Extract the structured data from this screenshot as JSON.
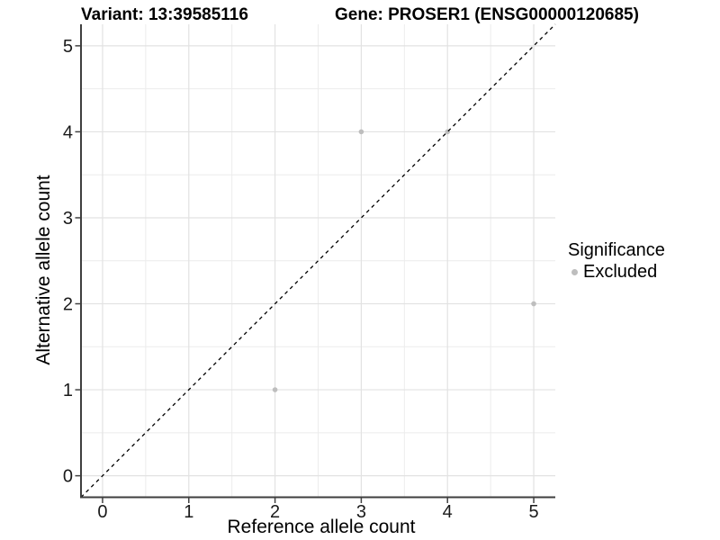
{
  "figure": {
    "variant_title": "Variant: 13:39585116",
    "gene_title": "Gene: PROSER1 (ENSG00000120685)"
  },
  "axes": {
    "x_title": "Reference allele count",
    "y_title": "Alternative allele count"
  },
  "legend": {
    "title": "Significance",
    "items": [
      {
        "label": "Excluded",
        "color": "#bebebe"
      }
    ]
  },
  "chart_data": {
    "type": "scatter",
    "title": "Variant: 13:39585116",
    "subtitle": "Gene: PROSER1 (ENSG00000120685)",
    "xlabel": "Reference allele count",
    "ylabel": "Alternative allele count",
    "xlim": [
      -0.25,
      5.25
    ],
    "ylim": [
      -0.25,
      5.25
    ],
    "x_ticks": [
      0,
      1,
      2,
      3,
      4,
      5
    ],
    "y_ticks": [
      0,
      1,
      2,
      3,
      4,
      5
    ],
    "x_minor_ticks": [
      0.5,
      1.5,
      2.5,
      3.5,
      4.5
    ],
    "y_minor_ticks": [
      0.5,
      1.5,
      2.5,
      3.5,
      4.5
    ],
    "grid": "major+minor",
    "legend_position": "right",
    "series": [
      {
        "name": "Excluded",
        "marker": "circle",
        "color": "#bebebe",
        "point_radius": 2.8,
        "points": [
          {
            "x": 2,
            "y": 1
          },
          {
            "x": 3,
            "y": 4
          },
          {
            "x": 4,
            "y": 4
          },
          {
            "x": 5,
            "y": 2
          }
        ]
      }
    ],
    "reference_line": {
      "type": "identity",
      "slope": 1,
      "intercept": 0,
      "style": "dashed",
      "color": "#000000"
    }
  },
  "style": {
    "background": "#ffffff",
    "grid_major_color": "#e2e2e2",
    "grid_minor_color": "#ececec",
    "axis_line_color": "#3f3f3f",
    "tick_mark_color": "#424242",
    "tick_label_color": "#1a1a1a",
    "text_color": "#000000"
  }
}
